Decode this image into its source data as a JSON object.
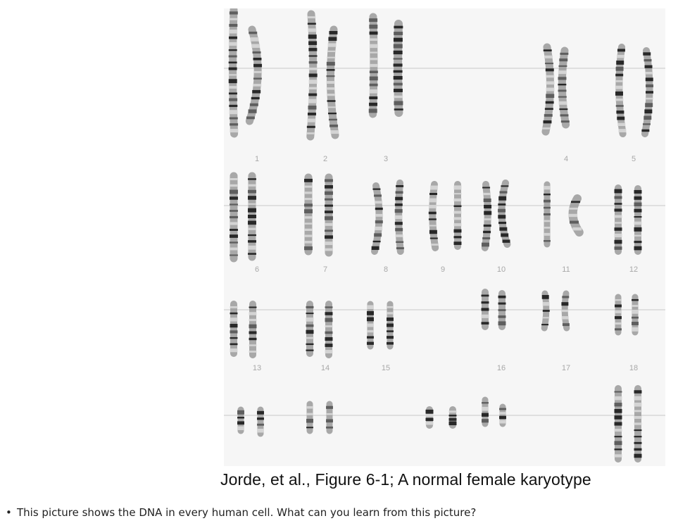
{
  "figure": {
    "chromosome_labels": [
      "1",
      "2",
      "3",
      "4",
      "5",
      "6",
      "7",
      "8",
      "9",
      "10",
      "11",
      "12",
      "13",
      "14",
      "15",
      "16",
      "17",
      "18"
    ],
    "caption": "Jorde, et al., Figure 6-1; A normal female karyotype"
  },
  "question": {
    "bullet": "•",
    "text": "This picture shows the DNA in every human cell. What can you learn from this picture?"
  }
}
